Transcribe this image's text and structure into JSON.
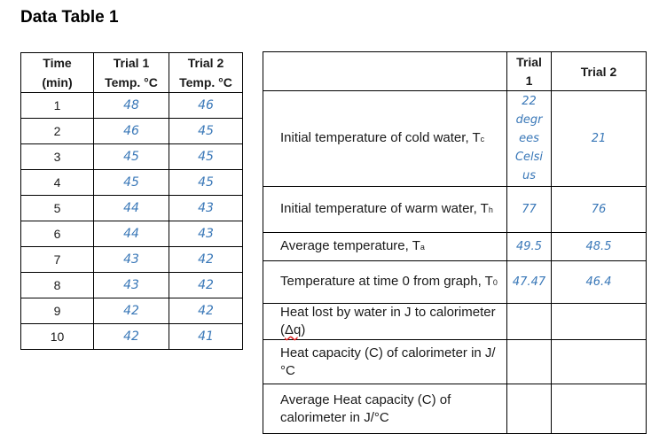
{
  "title": "Data Table 1",
  "table1": {
    "headers": {
      "time": [
        "Time",
        "(min)"
      ],
      "trial1": [
        "Trial 1",
        "Temp. °C"
      ],
      "trial2": [
        "Trial 2",
        "Temp. °C"
      ]
    },
    "rows": [
      {
        "time": "1",
        "trial1": "48",
        "trial2": "46"
      },
      {
        "time": "2",
        "trial1": "46",
        "trial2": "45"
      },
      {
        "time": "3",
        "trial1": "45",
        "trial2": "45"
      },
      {
        "time": "4",
        "trial1": "45",
        "trial2": "45"
      },
      {
        "time": "5",
        "trial1": "44",
        "trial2": "43"
      },
      {
        "time": "6",
        "trial1": "44",
        "trial2": "43"
      },
      {
        "time": "7",
        "trial1": "43",
        "trial2": "42"
      },
      {
        "time": "8",
        "trial1": "43",
        "trial2": "42"
      },
      {
        "time": "9",
        "trial1": "42",
        "trial2": "42"
      },
      {
        "time": "10",
        "trial1": "42",
        "trial2": "41"
      }
    ]
  },
  "table2": {
    "headers": {
      "trial1": [
        "Trial",
        "1"
      ],
      "trial2": "Trial 2"
    },
    "rows": [
      {
        "label": "Initial temperature of cold water, T",
        "sub": "c",
        "trial1": [
          "22",
          "degr",
          "ees",
          "Celsi",
          "us"
        ],
        "trial2": "21"
      },
      {
        "label": "Initial temperature of warm water, T",
        "sub": "h",
        "trial1": "77",
        "trial2": "76"
      },
      {
        "label": "Average temperature, T",
        "sub": "a",
        "trial1": "49.5",
        "trial2": "48.5"
      },
      {
        "label": "Temperature at time 0 from graph, T",
        "sub": "0",
        "trial1": "47.47",
        "trial2": "46.4"
      },
      {
        "label": "Heat lost by water in J to calorimeter (",
        "wavy": "Δq",
        "after": ")",
        "trial1": "",
        "trial2": ""
      },
      {
        "label": "Heat capacity (C) of calorimeter in J/°C",
        "trial1": "",
        "trial2": ""
      },
      {
        "label": "Average Heat capacity (C) of calorimeter in J/°C",
        "trial1": "",
        "trial2": ""
      }
    ]
  }
}
